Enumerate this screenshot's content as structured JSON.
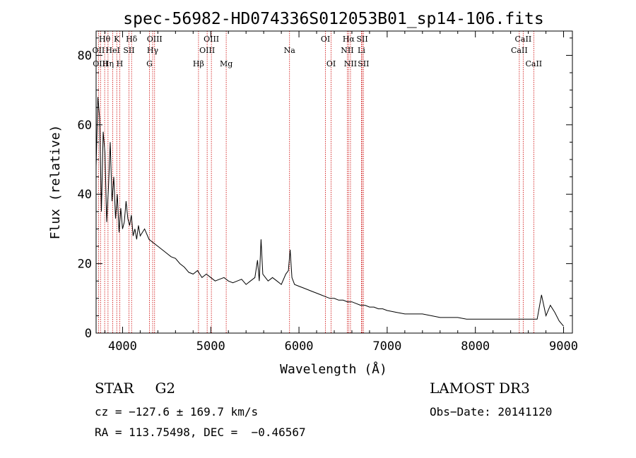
{
  "chart_data": {
    "type": "line",
    "title": "spec-56982-HD074336S012053B01_sp14-106.fits",
    "xlabel": "Wavelength (Å)",
    "ylabel": "Flux (relative)",
    "xlim": [
      3700,
      9100
    ],
    "ylim": [
      0,
      87
    ],
    "xticks": [
      4000,
      5000,
      6000,
      7000,
      8000,
      9000
    ],
    "yticks": [
      0,
      20,
      40,
      60,
      80
    ],
    "grid": false,
    "series": [
      {
        "x": [
          3700,
          3720,
          3740,
          3760,
          3780,
          3800,
          3820,
          3840,
          3860,
          3880,
          3900,
          3920,
          3940,
          3960,
          3980,
          4000,
          4020,
          4040,
          4060,
          4080,
          4100,
          4120,
          4140,
          4160,
          4180,
          4200,
          4250,
          4300,
          4350,
          4400,
          4450,
          4500,
          4550,
          4600,
          4650,
          4700,
          4750,
          4800,
          4850,
          4900,
          4950,
          5000,
          5050,
          5100,
          5150,
          5200,
          5250,
          5300,
          5350,
          5400,
          5450,
          5500,
          5530,
          5550,
          5570,
          5590,
          5620,
          5650,
          5700,
          5750,
          5800,
          5850,
          5880,
          5900,
          5920,
          5950,
          6000,
          6050,
          6100,
          6150,
          6200,
          6250,
          6300,
          6350,
          6400,
          6450,
          6500,
          6550,
          6600,
          6650,
          6700,
          6750,
          6800,
          6850,
          6900,
          6950,
          7000,
          7100,
          7200,
          7300,
          7400,
          7500,
          7600,
          7700,
          7800,
          7900,
          8000,
          8100,
          8200,
          8300,
          8400,
          8500,
          8600,
          8700,
          8750,
          8800,
          8850,
          8900,
          8950,
          9000
        ],
        "y": [
          48,
          68,
          62,
          35,
          58,
          52,
          32,
          42,
          55,
          38,
          45,
          33,
          40,
          29,
          36,
          30,
          32,
          38,
          33,
          31,
          34,
          28,
          30,
          27,
          31,
          28,
          30,
          27,
          26,
          25,
          24,
          23,
          22,
          21.5,
          20,
          19,
          17.5,
          17,
          18,
          16,
          17,
          16,
          15,
          15.5,
          16,
          15,
          14.5,
          15,
          15.5,
          14,
          15,
          16,
          21,
          15,
          27,
          17,
          16,
          15,
          16,
          15,
          14,
          17,
          18,
          24,
          16,
          14,
          13.5,
          13,
          12.5,
          12,
          11.5,
          11,
          10.5,
          10,
          10,
          9.5,
          9.5,
          9,
          9,
          8.5,
          8,
          8,
          7.5,
          7.5,
          7,
          7,
          6.5,
          6,
          5.5,
          5.5,
          5.5,
          5,
          4.5,
          4.5,
          4.5,
          4,
          4,
          4,
          4,
          4,
          4,
          4,
          4,
          4,
          11,
          5,
          8,
          6,
          3.5,
          2
        ]
      }
    ],
    "line_colors": {
      "spectrum": "#000000",
      "line_markers": "#cc0000",
      "axes": "#000000"
    },
    "lines": [
      {
        "name": "Hθ",
        "x": 3797,
        "row": 0
      },
      {
        "name": "OII",
        "x": 3727,
        "row": 1
      },
      {
        "name": "OIII",
        "x": 3750,
        "row": 2
      },
      {
        "name": "K",
        "x": 3934,
        "row": 0
      },
      {
        "name": "HeI",
        "x": 3889,
        "row": 1
      },
      {
        "name": "Hη",
        "x": 3835,
        "row": 2
      },
      {
        "name": "SII",
        "x": 4072,
        "row": 1
      },
      {
        "name": "H",
        "x": 3968,
        "row": 2
      },
      {
        "name": "Hδ",
        "x": 4102,
        "row": 0
      },
      {
        "name": "OIII",
        "x": 4363,
        "row": 0
      },
      {
        "name": "Hγ",
        "x": 4341,
        "row": 1
      },
      {
        "name": "G",
        "x": 4305,
        "row": 2
      },
      {
        "name": "OIII",
        "x": 5007,
        "row": 0
      },
      {
        "name": "OIII",
        "x": 4959,
        "row": 1
      },
      {
        "name": "Hβ",
        "x": 4861,
        "row": 2
      },
      {
        "name": "Mg",
        "x": 5175,
        "row": 2
      },
      {
        "name": "Na",
        "x": 5893,
        "row": 1
      },
      {
        "name": "OI",
        "x": 6300,
        "row": 0
      },
      {
        "name": "OI",
        "x": 6364,
        "row": 2
      },
      {
        "name": "Hα",
        "x": 6563,
        "row": 0
      },
      {
        "name": "SII",
        "x": 6717,
        "row": 0
      },
      {
        "name": "NII",
        "x": 6548,
        "row": 1
      },
      {
        "name": "Li",
        "x": 6708,
        "row": 1
      },
      {
        "name": "NII",
        "x": 6584,
        "row": 2
      },
      {
        "name": "SII",
        "x": 6731,
        "row": 2
      },
      {
        "name": "CaII",
        "x": 8542,
        "row": 0
      },
      {
        "name": "CaII",
        "x": 8498,
        "row": 1
      },
      {
        "name": "CaII",
        "x": 8662,
        "row": 2
      }
    ]
  },
  "info": {
    "object_class": "STAR",
    "subclass": "G2",
    "survey": "LAMOST DR3",
    "cz": "cz = −127.6 ± 169.7 km/s",
    "obs_date": "Obs−Date: 20141120",
    "radec": "RA = 113.75498, DEC =  −0.46567"
  }
}
